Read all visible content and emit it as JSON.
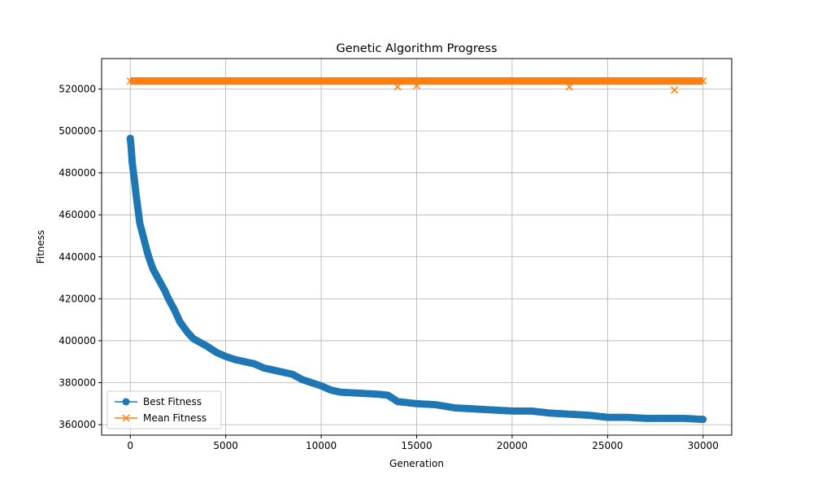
{
  "chart_data": {
    "type": "line",
    "title": "Genetic Algorithm Progress",
    "xlabel": "Generation",
    "ylabel": "Fitness",
    "xlim": [
      -1500,
      31500
    ],
    "ylim": [
      355000,
      534500
    ],
    "xticks": [
      0,
      5000,
      10000,
      15000,
      20000,
      25000,
      30000
    ],
    "xtick_labels": [
      "0",
      "5000",
      "10000",
      "15000",
      "20000",
      "25000",
      "30000"
    ],
    "yticks": [
      360000,
      380000,
      400000,
      420000,
      440000,
      460000,
      480000,
      500000,
      520000
    ],
    "ytick_labels": [
      "360000",
      "380000",
      "400000",
      "420000",
      "440000",
      "460000",
      "480000",
      "500000",
      "520000"
    ],
    "grid": true,
    "legend_position": "lower-left",
    "series": [
      {
        "name": "Best Fitness",
        "color": "#1f77b4",
        "marker": "circle",
        "x": [
          0,
          50,
          100,
          200,
          300,
          400,
          500,
          700,
          900,
          1000,
          1200,
          1500,
          1800,
          2000,
          2300,
          2600,
          3000,
          3300,
          3700,
          4000,
          4500,
          5000,
          5500,
          6000,
          6500,
          7000,
          7500,
          8000,
          8500,
          9000,
          9500,
          10000,
          10500,
          11000,
          12000,
          13000,
          13500,
          14000,
          15000,
          16000,
          17000,
          18000,
          19000,
          20000,
          21000,
          22000,
          23000,
          24000,
          25000,
          26000,
          27000,
          28000,
          29000,
          30000
        ],
        "y": [
          496500,
          492000,
          485000,
          478000,
          470000,
          463000,
          456000,
          449000,
          442000,
          439000,
          434000,
          429000,
          424000,
          420000,
          415000,
          409000,
          404000,
          401000,
          399000,
          397500,
          394500,
          392500,
          391000,
          390000,
          389000,
          387000,
          386000,
          385000,
          384000,
          381500,
          380000,
          378500,
          376500,
          375500,
          375000,
          374500,
          374000,
          371000,
          370000,
          369500,
          368000,
          367500,
          367000,
          366500,
          366500,
          365500,
          365000,
          364500,
          363500,
          363500,
          363000,
          363000,
          363000,
          362500
        ]
      },
      {
        "name": "Mean Fitness",
        "color": "#ff7f0e",
        "marker": "x",
        "x": [
          0,
          30000
        ],
        "y_center": 523800,
        "y_spread": 1800,
        "outliers": [
          {
            "x": 14000,
            "y": 521000
          },
          {
            "x": 15000,
            "y": 521500
          },
          {
            "x": 23000,
            "y": 521000
          },
          {
            "x": 28500,
            "y": 519500
          }
        ]
      }
    ]
  }
}
